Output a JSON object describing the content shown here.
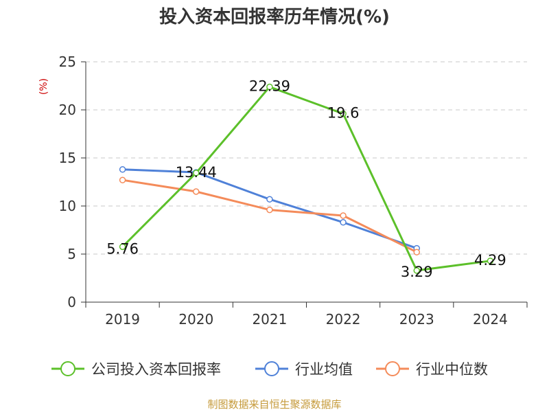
{
  "chart_data": {
    "type": "line",
    "title": "投入资本回报率历年情况(%)",
    "ylabel": "(%)",
    "xlabel": "",
    "categories": [
      "2019",
      "2020",
      "2021",
      "2022",
      "2023",
      "2024"
    ],
    "ylim": [
      0,
      25
    ],
    "yticks": [
      0,
      5,
      10,
      15,
      20,
      25
    ],
    "grid": true,
    "legend_position": "bottom",
    "series": [
      {
        "name": "公司投入资本回报率",
        "values": [
          5.76,
          13.44,
          22.39,
          19.6,
          3.29,
          4.29
        ],
        "color": "#5cc02a",
        "labels": [
          "5.76",
          "13.44",
          "22.39",
          "19.6",
          "3.29",
          "4.29"
        ]
      },
      {
        "name": "行业均值",
        "values": [
          13.8,
          13.5,
          10.7,
          8.3,
          5.6,
          null
        ],
        "color": "#4f81d8"
      },
      {
        "name": "行业中位数",
        "values": [
          12.7,
          11.5,
          9.6,
          9.0,
          5.2,
          null
        ],
        "color": "#f48b5a"
      }
    ]
  },
  "source": "制图数据来自恒生聚源数据库"
}
